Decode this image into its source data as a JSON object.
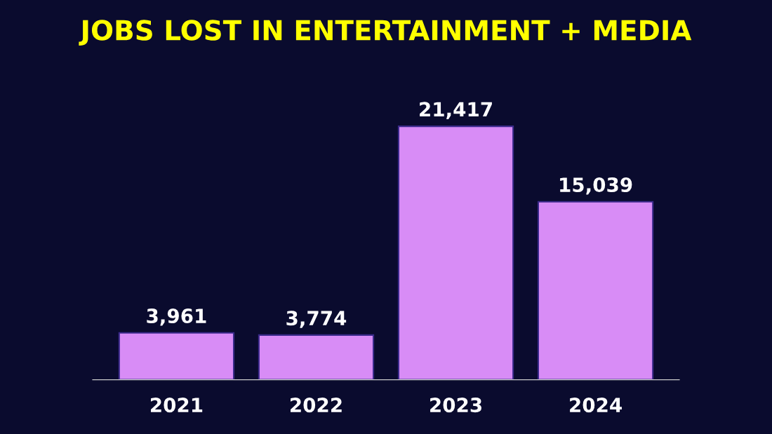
{
  "chart_data": {
    "type": "bar",
    "title": "JOBS LOST IN ENTERTAINMENT + MEDIA",
    "categories": [
      "2021",
      "2022",
      "2023",
      "2024"
    ],
    "values": [
      3961,
      3774,
      21417,
      15039
    ],
    "value_labels": [
      "3,961",
      "3,774",
      "21,417",
      "15,039"
    ],
    "color": "#d88cf6",
    "tick_labels": "x",
    "grid": false,
    "legend": false
  }
}
